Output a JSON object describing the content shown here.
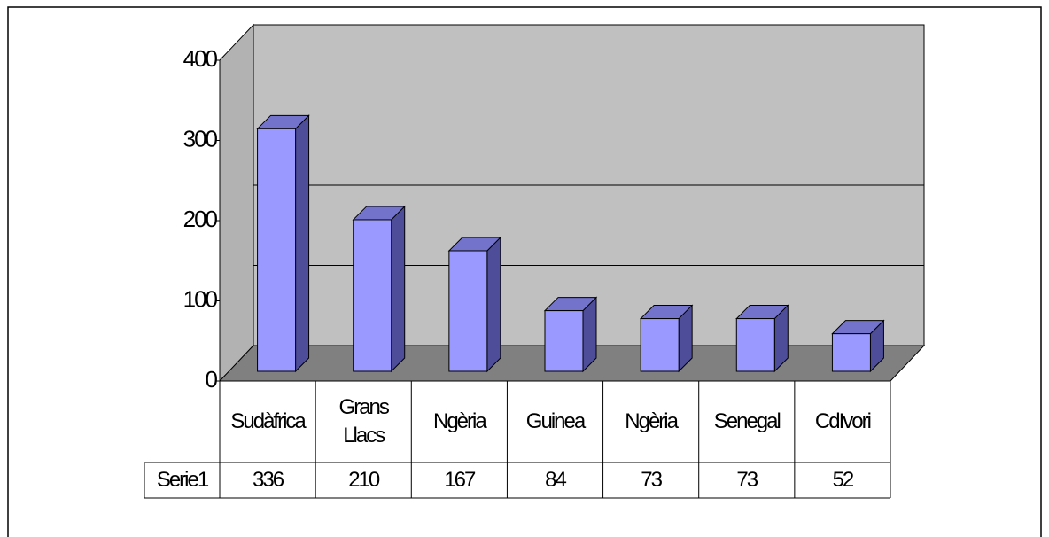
{
  "chart_data": {
    "type": "bar3d",
    "categories": [
      "Sudàfrica",
      "Grans Llacs",
      "Ngèria",
      "Guinea",
      "Ngèria",
      "Senegal",
      "CdIvori"
    ],
    "series": [
      {
        "name": "Serie1",
        "color": "#9999ff",
        "values": [
          336,
          210,
          167,
          84,
          73,
          73,
          52
        ]
      }
    ],
    "ylim": [
      0,
      400
    ],
    "yticks": [
      0,
      100,
      200,
      300,
      400
    ],
    "grid": true
  }
}
